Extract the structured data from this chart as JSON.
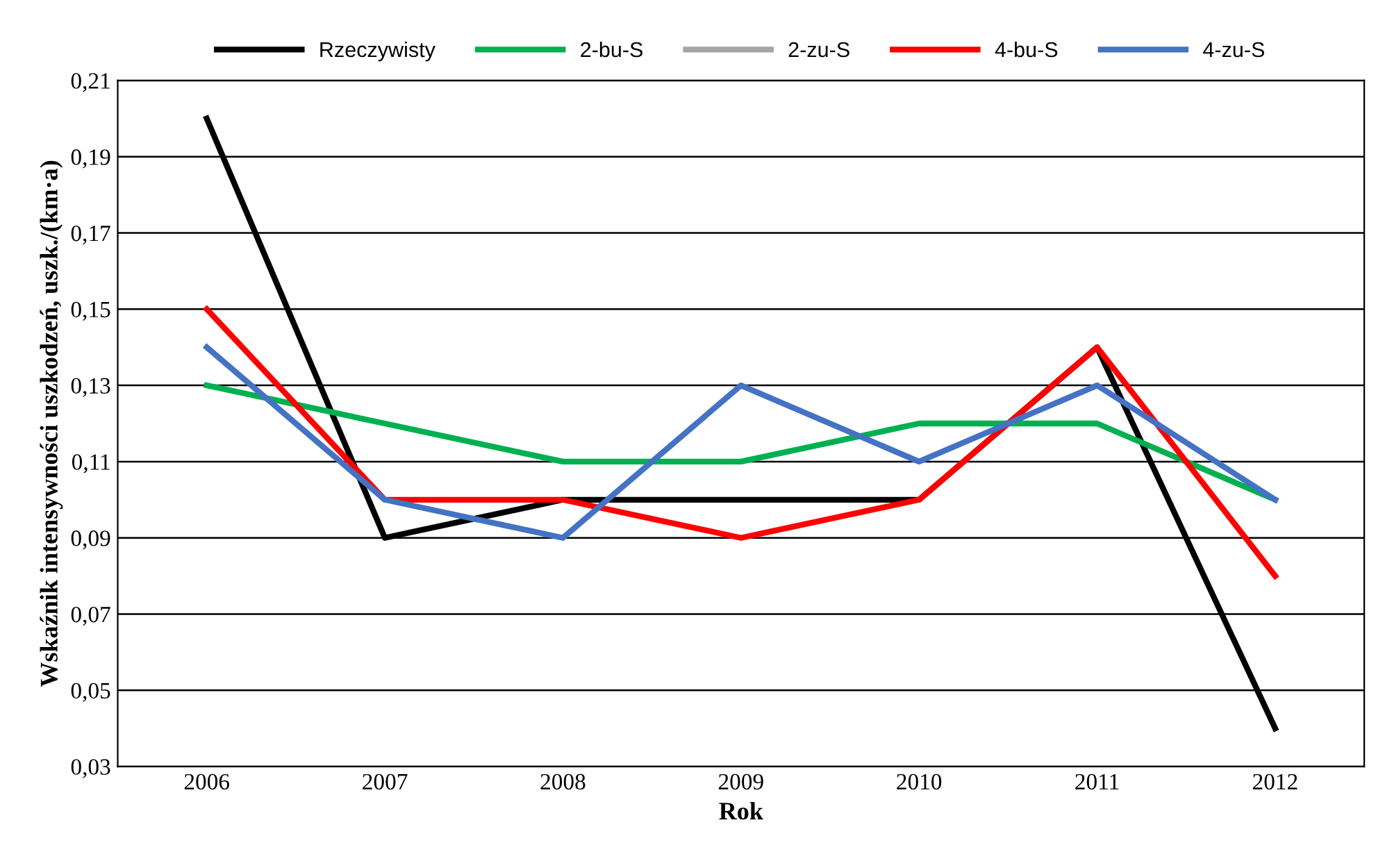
{
  "chart_data": {
    "type": "line",
    "xlabel": "Rok",
    "ylabel": "Wskaźnik intensywności uszkodzeń, uszk./(km·a)",
    "categories": [
      "2006",
      "2007",
      "2008",
      "2009",
      "2010",
      "2011",
      "2012"
    ],
    "series": [
      {
        "name": "Rzeczywisty",
        "color": "#000000",
        "values": [
          0.2,
          0.09,
          0.1,
          0.1,
          0.1,
          0.14,
          0.04
        ]
      },
      {
        "name": "2-bu-S",
        "color": "#00b050",
        "values": [
          0.13,
          0.12,
          0.11,
          0.11,
          0.12,
          0.12,
          0.1
        ]
      },
      {
        "name": "2-zu-S",
        "color": "#a5a5a5",
        "values": [
          null,
          null,
          null,
          null,
          null,
          null,
          null
        ]
      },
      {
        "name": "4-bu-S",
        "color": "#ff0000",
        "values": [
          0.15,
          0.1,
          0.1,
          0.09,
          0.1,
          0.14,
          0.08
        ]
      },
      {
        "name": "4-zu-S",
        "color": "#4472c4",
        "values": [
          0.14,
          0.1,
          0.09,
          0.13,
          0.11,
          0.13,
          0.1
        ]
      }
    ],
    "ylim": [
      0.03,
      0.21
    ],
    "yticks": [
      {
        "value": 0.03,
        "label": "0,03"
      },
      {
        "value": 0.05,
        "label": "0,05"
      },
      {
        "value": 0.07,
        "label": "0,07"
      },
      {
        "value": 0.09,
        "label": "0,09"
      },
      {
        "value": 0.11,
        "label": "0,11"
      },
      {
        "value": 0.13,
        "label": "0,13"
      },
      {
        "value": 0.15,
        "label": "0,15"
      },
      {
        "value": 0.17,
        "label": "0,17"
      },
      {
        "value": 0.19,
        "label": "0,19"
      },
      {
        "value": 0.21,
        "label": "0,21"
      }
    ],
    "grid": "y",
    "legend": "top",
    "marker": "none",
    "line_style": "solid"
  }
}
